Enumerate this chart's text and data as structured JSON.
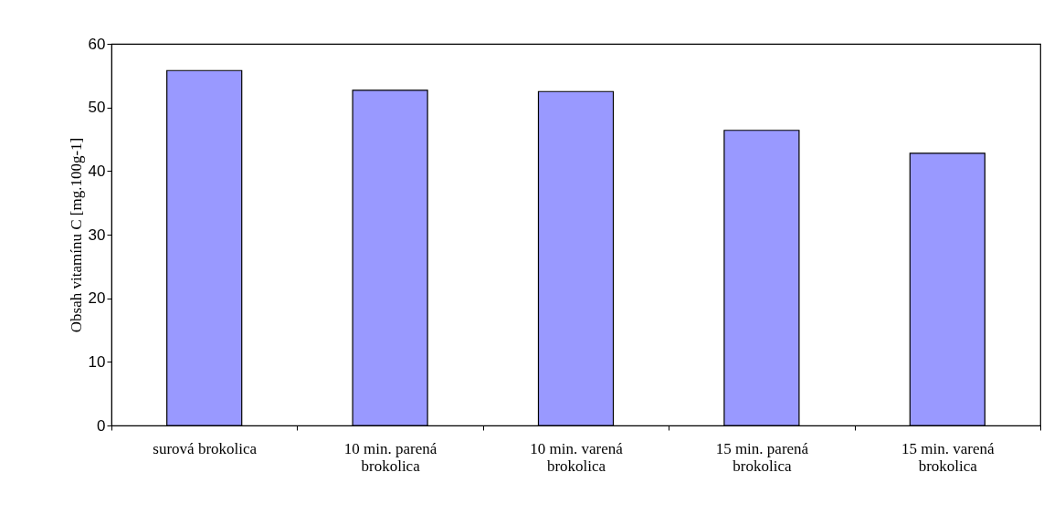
{
  "chart_data": {
    "type": "bar",
    "ylabel": "Obsah vitamínu C [mg.100g-1]",
    "categories": [
      "surová brokolica",
      "10 min. parená\nbrokolica",
      "10 min. varená\nbrokolica",
      "15 min. parená\nbrokolica",
      "15 min. varená\nbrokolica"
    ],
    "values": [
      55.8,
      52.7,
      52.5,
      46.4,
      42.8
    ],
    "color": "#9999ff",
    "ylim": [
      0,
      60
    ],
    "yticks": [
      0,
      10,
      20,
      30,
      40,
      50,
      60
    ],
    "grid": false
  }
}
